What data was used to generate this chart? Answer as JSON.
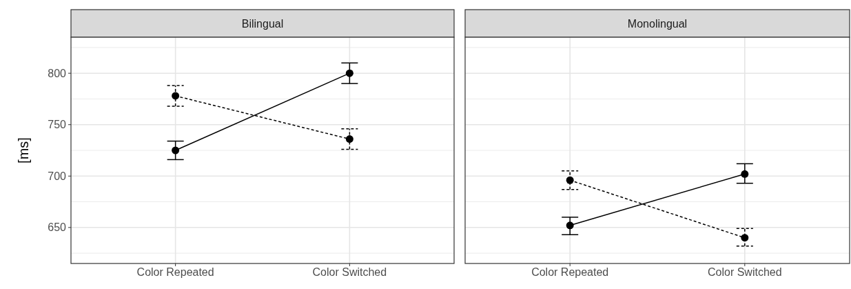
{
  "chart_data": [
    {
      "type": "line",
      "title": "Bilingual",
      "ylabel": "[ms]",
      "categories": [
        "Color Repeated",
        "Color Switched"
      ],
      "ylim": [
        615,
        835
      ],
      "yticks": [
        650,
        700,
        750,
        800
      ],
      "grid": true,
      "marker": "circle",
      "series": [
        {
          "color": "#000000",
          "line_style": "solid",
          "values": [
            725,
            800
          ],
          "errors": [
            [
              716,
              734
            ],
            [
              790,
              810
            ]
          ]
        },
        {
          "color": "#000000",
          "line_style": "dashed",
          "values": [
            778,
            736
          ],
          "errors": [
            [
              768,
              788
            ],
            [
              726,
              746
            ]
          ]
        }
      ]
    },
    {
      "type": "line",
      "title": "Monolingual",
      "categories": [
        "Color Repeated",
        "Color Switched"
      ],
      "ylim": [
        615,
        835
      ],
      "yticks": [
        650,
        700,
        750,
        800
      ],
      "tick_labels": "x",
      "grid": true,
      "marker": "circle",
      "series": [
        {
          "color": "#000000",
          "line_style": "solid",
          "values": [
            652,
            702
          ],
          "errors": [
            [
              643,
              660
            ],
            [
              693,
              712
            ]
          ]
        },
        {
          "color": "#000000",
          "line_style": "dashed",
          "values": [
            696,
            640
          ],
          "errors": [
            [
              687,
              705
            ],
            [
              632,
              649
            ]
          ]
        }
      ]
    }
  ]
}
